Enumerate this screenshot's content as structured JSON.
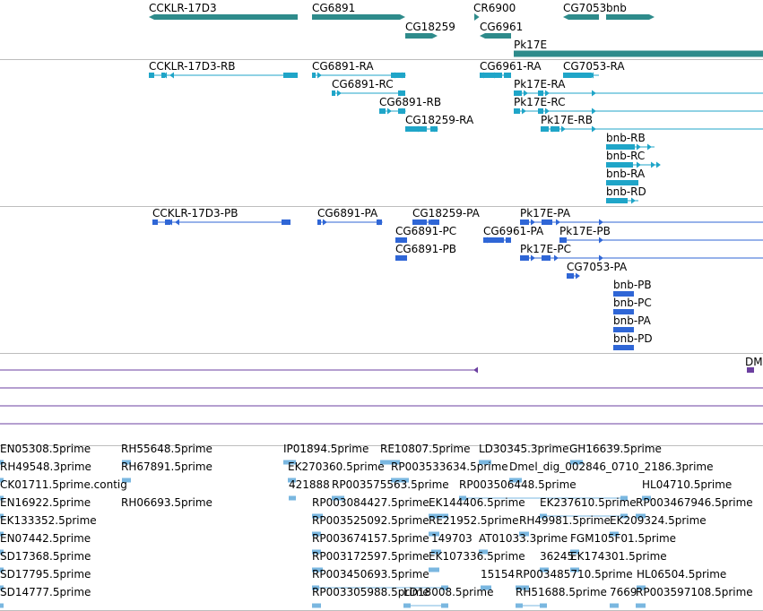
{
  "tracks": [
    {
      "name": "gene-track",
      "color": "#2e8b8b",
      "labels": [
        "CCKLR-17D3",
        "CG6891",
        "CG18259",
        "CR6900",
        "CG6961",
        "CG7053",
        "bnb",
        "Pk17E"
      ]
    },
    {
      "name": "transcript-track",
      "color": "#1fa5c8",
      "labels": [
        "CCKLR-17D3-RB",
        "CG6891-RA",
        "CG6891-RC",
        "CG6891-RB",
        "CG18259-RA",
        "CG6961-RA",
        "CG7053-RA",
        "Pk17E-RA",
        "Pk17E-RC",
        "Pk17E-RB",
        "bnb-RB",
        "bnb-RC",
        "bnb-RA",
        "bnb-RD"
      ]
    },
    {
      "name": "protein-track",
      "color": "#2f66d6",
      "labels": [
        "CCKLR-17D3-PB",
        "CG6891-PA",
        "CG18259-PA",
        "CG6891-PC",
        "CG6891-PB",
        "CG6961-PA",
        "Pk17E-PA",
        "Pk17E-PB",
        "Pk17E-PC",
        "CG7053-PA",
        "bnb-PB",
        "bnb-PC",
        "bnb-PA",
        "bnb-PD"
      ]
    },
    {
      "name": "dm-track",
      "color": "#6b3fa0",
      "labels": [
        "DM"
      ]
    },
    {
      "name": "est-track",
      "color": "#7ab7e0",
      "labels": [
        "EN05308.5prime",
        "RH55648.5prime",
        "IP01894.5prime",
        "RE10807.5prime",
        "LD30345.3prime",
        "GH16639.5prime",
        "RH49548.3prime",
        "RH67891.5prime",
        "EK270360.5prime",
        "RP003533634.5prime",
        "Dmel_dig_002846_0710_2186.3prime",
        "CK01711.5prime.contig",
        "421888",
        "RP003575563.5prime",
        "RP003506448.5prime",
        "HL04710.5prime",
        "EN16922.5prime",
        "RH06693.5prime",
        "RP003084427.5prime",
        "EK144406.5prime",
        "EK237610.5prime",
        "RP003467946.5prime",
        "EK133352.5prime",
        "RP003525092.5prime",
        "RE21952.5prime",
        "RH49981.5prime",
        "EK209324.5prime",
        "EN07442.5prime",
        "RP003674157.5prime",
        "149703",
        "AT01033.3prime",
        "FGM105F01.5prime",
        "SD17368.5prime",
        "RP003172597.5prime",
        "EK107336.5prime",
        "36245",
        "EK174301.5prime",
        "SD17795.5prime",
        "RP003450693.5prime",
        "15154",
        "RP003485710.5prime",
        "HL06504.5prime",
        "SD14777.5prime",
        "RP003305988.5prime",
        "LD18008.5prime",
        "RH51688.5prime",
        "7669",
        "RP003597108.5prime"
      ]
    }
  ]
}
